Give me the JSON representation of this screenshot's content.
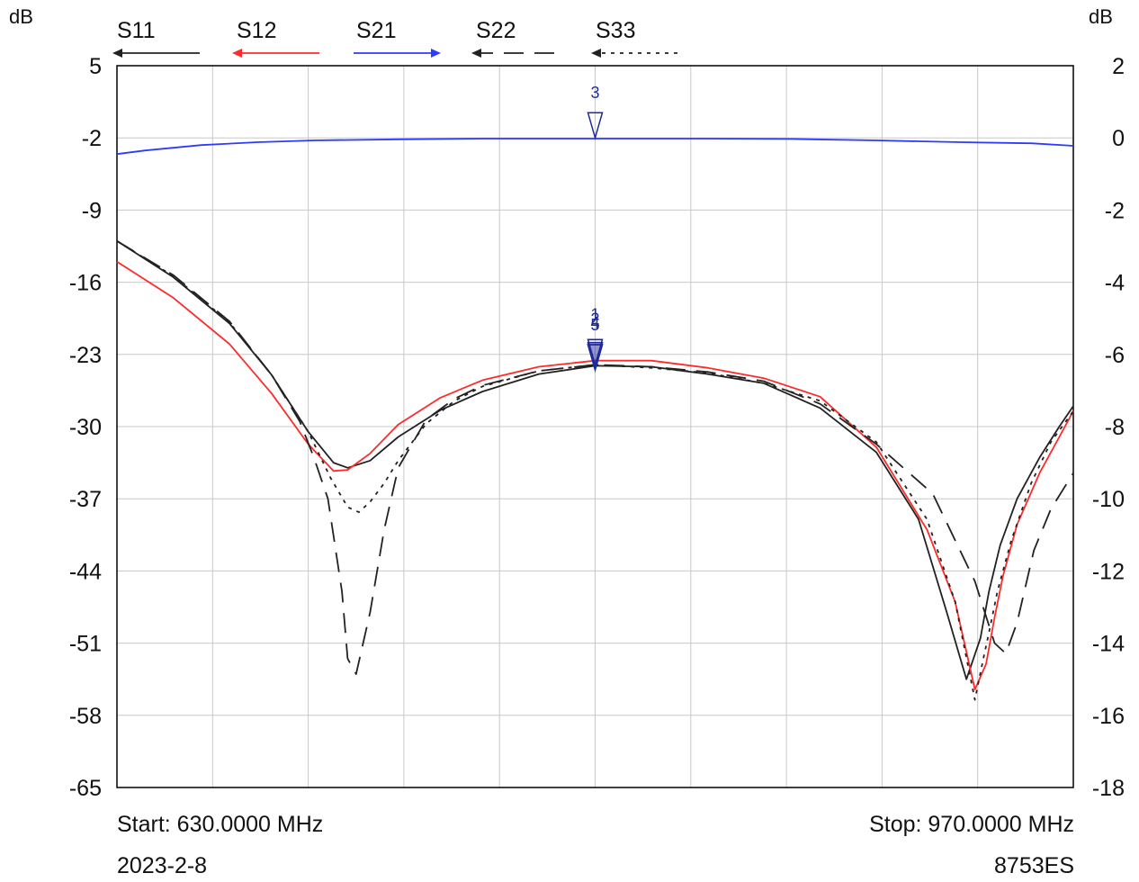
{
  "chart_data": {
    "type": "line",
    "left_axis_unit": "dB",
    "right_axis_unit": "dB",
    "x_range_mhz": [
      630,
      970
    ],
    "x_gridlines": 10,
    "left_axis": {
      "ylim": [
        -65,
        5
      ],
      "ticks": [
        "5",
        "-2",
        "-9",
        "-16",
        "-23",
        "-30",
        "-37",
        "-44",
        "-51",
        "-58",
        "-65"
      ]
    },
    "right_axis": {
      "ylim": [
        -18,
        2
      ],
      "ticks": [
        "2",
        "0",
        "-2",
        "-4",
        "-6",
        "-8",
        "-10",
        "-12",
        "-14",
        "-16",
        "-18"
      ]
    },
    "grid": true,
    "legend": [
      {
        "name": "S11",
        "color": "#222222",
        "style": "solid",
        "arrow": "left"
      },
      {
        "name": "S12",
        "color": "#ff2a2a",
        "style": "solid",
        "arrow": "left"
      },
      {
        "name": "S21",
        "color": "#2b3bff",
        "style": "solid",
        "arrow": "right"
      },
      {
        "name": "S22",
        "color": "#222222",
        "style": "dashed",
        "arrow": "left"
      },
      {
        "name": "S33",
        "color": "#222222",
        "style": "dotted",
        "arrow": "left"
      }
    ],
    "series": [
      {
        "name": "S21",
        "axis": "right",
        "color": "#2b3bff",
        "dash": "",
        "x": [
          630,
          640,
          660,
          680,
          700,
          730,
          760,
          800,
          840,
          870,
          900,
          930,
          955,
          970
        ],
        "y": [
          -0.45,
          -0.35,
          -0.2,
          -0.12,
          -0.07,
          -0.04,
          -0.02,
          -0.02,
          -0.02,
          -0.03,
          -0.07,
          -0.12,
          -0.15,
          -0.22
        ]
      },
      {
        "name": "S11",
        "axis": "left",
        "color": "#222222",
        "dash": "",
        "x": [
          630,
          650,
          670,
          685,
          698,
          707,
          712,
          720,
          730,
          745,
          760,
          780,
          800,
          820,
          840,
          860,
          880,
          900,
          915,
          925,
          932,
          937,
          940,
          944,
          950,
          958,
          965,
          970
        ],
        "y": [
          -12,
          -15.5,
          -20,
          -25,
          -30.5,
          -33.5,
          -34,
          -33.3,
          -31,
          -28.4,
          -26.6,
          -24.9,
          -24.1,
          -24.2,
          -24.9,
          -25.8,
          -28.2,
          -32.5,
          -39,
          -48,
          -54.5,
          -50.5,
          -46,
          -41.5,
          -37,
          -33,
          -30,
          -28
        ]
      },
      {
        "name": "S12",
        "axis": "left",
        "color": "#ff2a2a",
        "dash": "",
        "x": [
          630,
          650,
          670,
          685,
          698,
          707,
          712,
          720,
          730,
          745,
          760,
          780,
          800,
          820,
          840,
          860,
          880,
          900,
          918,
          928,
          935,
          939,
          942,
          945,
          950,
          958,
          965,
          970
        ],
        "y": [
          -14,
          -17.5,
          -22,
          -26.8,
          -31.7,
          -34.3,
          -34.2,
          -32.6,
          -29.8,
          -27.2,
          -25.5,
          -24.2,
          -23.6,
          -23.6,
          -24.3,
          -25.3,
          -27.1,
          -32,
          -40,
          -47,
          -55.5,
          -53,
          -48.5,
          -44.5,
          -39.5,
          -34.5,
          -31,
          -28.5
        ]
      },
      {
        "name": "S22",
        "axis": "left",
        "color": "#222222",
        "dash": "22,12",
        "x": [
          630,
          650,
          670,
          685,
          695,
          700,
          705,
          710,
          712,
          715,
          720,
          725,
          730,
          740,
          750,
          760,
          780,
          800,
          820,
          840,
          860,
          880,
          900,
          920,
          935,
          942,
          946,
          950,
          956,
          962,
          970
        ],
        "y": [
          -12,
          -15.3,
          -19.8,
          -25,
          -29.5,
          -33,
          -37,
          -46,
          -52.5,
          -54,
          -48,
          -40,
          -34,
          -29.3,
          -27.3,
          -26,
          -24.6,
          -24,
          -24.2,
          -24.7,
          -25.6,
          -27.8,
          -31.7,
          -36.5,
          -45,
          -51,
          -52,
          -49,
          -42,
          -38,
          -34.5
        ]
      },
      {
        "name": "S33",
        "axis": "left",
        "color": "#222222",
        "dash": "4,6",
        "x": [
          630,
          650,
          670,
          685,
          698,
          706,
          712,
          716,
          720,
          725,
          730,
          740,
          750,
          760,
          780,
          800,
          820,
          840,
          860,
          880,
          900,
          918,
          928,
          935,
          938,
          940,
          943,
          948,
          955,
          962,
          970
        ],
        "y": [
          -12,
          -15.4,
          -19.9,
          -25,
          -30.5,
          -35,
          -37.8,
          -38.3,
          -37.3,
          -35.5,
          -33.3,
          -29.7,
          -27.5,
          -26.1,
          -24.6,
          -24,
          -24.3,
          -24.8,
          -25.8,
          -27.5,
          -31.5,
          -39,
          -47,
          -56.5,
          -52.5,
          -50,
          -46,
          -41,
          -35.5,
          -31.5,
          -28.5
        ]
      }
    ],
    "markers": [
      {
        "label": "3",
        "x_mhz": 800,
        "y_db_right": 0
      },
      {
        "label": "5",
        "x_mhz": 800,
        "y_db_left": -24.5
      },
      {
        "label": "4",
        "x_mhz": 800,
        "y_db_left": -24.5
      },
      {
        "label": "2",
        "x_mhz": 800,
        "y_db_left": -24.3
      },
      {
        "label": "1",
        "x_mhz": 800,
        "y_db_left": -24.0
      }
    ]
  },
  "footer": {
    "start": "Start: 630.0000 MHz",
    "stop": "Stop: 970.0000 MHz",
    "date": "2023-2-8",
    "instrument": "8753ES"
  }
}
